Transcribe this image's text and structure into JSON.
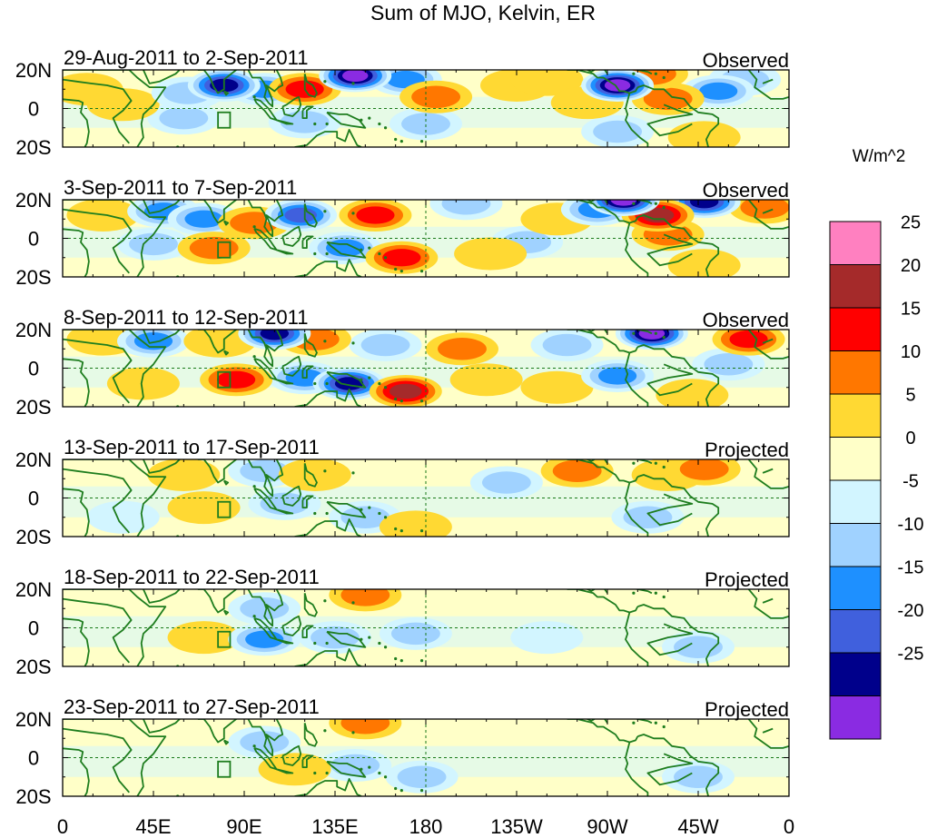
{
  "chart_data": {
    "type": "heatmap",
    "title": "Sum of MJO, Kelvin, ER",
    "units": "W/m^2",
    "x_tick_labels": [
      "0",
      "45E",
      "90E",
      "135E",
      "180",
      "135W",
      "90W",
      "45W",
      "0"
    ],
    "x_tick_degrees_east": [
      0,
      45,
      90,
      135,
      180,
      225,
      270,
      315,
      360
    ],
    "y_tick_labels": [
      "20N",
      "0",
      "20S"
    ],
    "y_tick_degrees": [
      20,
      0,
      -20
    ],
    "ylim": [
      -20,
      20
    ],
    "xlim": [
      0,
      360
    ],
    "colorbar": {
      "labels": [
        "25",
        "20",
        "15",
        "10",
        "5",
        "0",
        "-5",
        "-10",
        "-15",
        "-20",
        "-25"
      ],
      "levels": [
        25,
        20,
        15,
        10,
        5,
        0,
        -5,
        -10,
        -15,
        -20,
        -25
      ],
      "colors_top_to_bottom": [
        "#ff80c0",
        "#a52a2a",
        "#ff0000",
        "#ff7700",
        "#ffd933",
        "#ffffc8",
        "#d2f5ff",
        "#a0d2ff",
        "#1e90ff",
        "#4060dd",
        "#00008b",
        "#8a2be2"
      ]
    },
    "panels": [
      {
        "period": "29-Aug-2011 to 2-Sep-2011",
        "kind": "Observed",
        "blobs": [
          {
            "lon": 80,
            "lat": 12,
            "value": -22
          },
          {
            "lon": 100,
            "lat": 10,
            "value": -12
          },
          {
            "lon": 62,
            "lat": 8,
            "value": -8
          },
          {
            "lon": 120,
            "lat": 10,
            "value": 18
          },
          {
            "lon": 145,
            "lat": 17,
            "value": -26
          },
          {
            "lon": 170,
            "lat": 15,
            "value": -12
          },
          {
            "lon": 185,
            "lat": 6,
            "value": 12
          },
          {
            "lon": 225,
            "lat": 12,
            "value": 8
          },
          {
            "lon": 240,
            "lat": 15,
            "value": 8
          },
          {
            "lon": 260,
            "lat": 3,
            "value": 10
          },
          {
            "lon": 275,
            "lat": 12,
            "value": -25
          },
          {
            "lon": 292,
            "lat": 18,
            "value": 14
          },
          {
            "lon": 300,
            "lat": 5,
            "value": 12
          },
          {
            "lon": 325,
            "lat": 9,
            "value": -10
          },
          {
            "lon": 338,
            "lat": 15,
            "value": -8
          },
          {
            "lon": 30,
            "lat": 2,
            "value": 7
          },
          {
            "lon": 12,
            "lat": 10,
            "value": 6
          },
          {
            "lon": 120,
            "lat": -7,
            "value": -6
          },
          {
            "lon": 180,
            "lat": -8,
            "value": -5
          },
          {
            "lon": 275,
            "lat": -12,
            "value": -8
          },
          {
            "lon": 318,
            "lat": -15,
            "value": 10
          },
          {
            "lon": 60,
            "lat": -5,
            "value": -6
          },
          {
            "lon": 215,
            "lat": 2,
            "value": 4
          }
        ]
      },
      {
        "period": "3-Sep-2011 to 7-Sep-2011",
        "kind": "Observed",
        "blobs": [
          {
            "lon": 20,
            "lat": 12,
            "value": 8
          },
          {
            "lon": 50,
            "lat": 14,
            "value": -10
          },
          {
            "lon": 70,
            "lat": 10,
            "value": -12
          },
          {
            "lon": 95,
            "lat": 8,
            "value": 12
          },
          {
            "lon": 75,
            "lat": -5,
            "value": 12
          },
          {
            "lon": 118,
            "lat": 12,
            "value": -16
          },
          {
            "lon": 155,
            "lat": 12,
            "value": 16
          },
          {
            "lon": 200,
            "lat": 18,
            "value": -6
          },
          {
            "lon": 245,
            "lat": 10,
            "value": 10
          },
          {
            "lon": 265,
            "lat": 15,
            "value": -14
          },
          {
            "lon": 278,
            "lat": 20,
            "value": -26
          },
          {
            "lon": 295,
            "lat": 12,
            "value": 25
          },
          {
            "lon": 300,
            "lat": 2,
            "value": 15
          },
          {
            "lon": 318,
            "lat": 19,
            "value": -20
          },
          {
            "lon": 348,
            "lat": 16,
            "value": 12
          },
          {
            "lon": 140,
            "lat": -5,
            "value": -12
          },
          {
            "lon": 168,
            "lat": -10,
            "value": 16
          },
          {
            "lon": 212,
            "lat": -8,
            "value": 10
          },
          {
            "lon": 45,
            "lat": -3,
            "value": -8
          },
          {
            "lon": 318,
            "lat": -14,
            "value": 10
          },
          {
            "lon": 230,
            "lat": -2,
            "value": -6
          }
        ]
      },
      {
        "period": "8-Sep-2011 to 12-Sep-2011",
        "kind": "Observed",
        "blobs": [
          {
            "lon": 20,
            "lat": 15,
            "value": 6
          },
          {
            "lon": 45,
            "lat": 14,
            "value": -10
          },
          {
            "lon": 78,
            "lat": 14,
            "value": 10
          },
          {
            "lon": 105,
            "lat": 18,
            "value": -22
          },
          {
            "lon": 125,
            "lat": 15,
            "value": 15
          },
          {
            "lon": 160,
            "lat": 12,
            "value": -8
          },
          {
            "lon": 198,
            "lat": 10,
            "value": 12
          },
          {
            "lon": 250,
            "lat": 12,
            "value": -6
          },
          {
            "lon": 292,
            "lat": 18,
            "value": -25
          },
          {
            "lon": 340,
            "lat": 15,
            "value": 20
          },
          {
            "lon": 86,
            "lat": -6,
            "value": 20
          },
          {
            "lon": 120,
            "lat": -5,
            "value": -10
          },
          {
            "lon": 142,
            "lat": -8,
            "value": -20
          },
          {
            "lon": 170,
            "lat": -12,
            "value": 22
          },
          {
            "lon": 210,
            "lat": -6,
            "value": 6
          },
          {
            "lon": 245,
            "lat": -10,
            "value": 8
          },
          {
            "lon": 275,
            "lat": -4,
            "value": -14
          },
          {
            "lon": 312,
            "lat": -14,
            "value": 8
          },
          {
            "lon": 330,
            "lat": 2,
            "value": -8
          },
          {
            "lon": 40,
            "lat": -8,
            "value": 6
          }
        ]
      },
      {
        "period": "13-Sep-2011 to 17-Sep-2011",
        "kind": "Projected",
        "blobs": [
          {
            "lon": 60,
            "lat": 12,
            "value": 6
          },
          {
            "lon": 100,
            "lat": 14,
            "value": -7
          },
          {
            "lon": 125,
            "lat": 12,
            "value": 10
          },
          {
            "lon": 150,
            "lat": 8,
            "value": 5
          },
          {
            "lon": 220,
            "lat": 8,
            "value": -5
          },
          {
            "lon": 255,
            "lat": 14,
            "value": 14
          },
          {
            "lon": 300,
            "lat": 12,
            "value": 6
          },
          {
            "lon": 318,
            "lat": 15,
            "value": 12
          },
          {
            "lon": 70,
            "lat": -5,
            "value": 6
          },
          {
            "lon": 110,
            "lat": -3,
            "value": -7
          },
          {
            "lon": 150,
            "lat": -10,
            "value": -6
          },
          {
            "lon": 175,
            "lat": -15,
            "value": 6
          },
          {
            "lon": 290,
            "lat": -10,
            "value": -5
          },
          {
            "lon": 30,
            "lat": -10,
            "value": -4
          },
          {
            "lon": 30,
            "lat": 15,
            "value": 4
          }
        ]
      },
      {
        "period": "18-Sep-2011 to 22-Sep-2011",
        "kind": "Projected",
        "blobs": [
          {
            "lon": 60,
            "lat": 10,
            "value": 5
          },
          {
            "lon": 100,
            "lat": 10,
            "value": -6
          },
          {
            "lon": 150,
            "lat": 17,
            "value": 14
          },
          {
            "lon": 200,
            "lat": 12,
            "value": 5
          },
          {
            "lon": 70,
            "lat": -5,
            "value": 6
          },
          {
            "lon": 100,
            "lat": -6,
            "value": -10
          },
          {
            "lon": 135,
            "lat": -5,
            "value": -6
          },
          {
            "lon": 175,
            "lat": -3,
            "value": -6
          },
          {
            "lon": 295,
            "lat": 16,
            "value": 5
          },
          {
            "lon": 315,
            "lat": -10,
            "value": -8
          },
          {
            "lon": 30,
            "lat": 5,
            "value": 4
          },
          {
            "lon": 240,
            "lat": -5,
            "value": -3
          }
        ]
      },
      {
        "period": "23-Sep-2011 to 27-Sep-2011",
        "kind": "Projected",
        "blobs": [
          {
            "lon": 50,
            "lat": 14,
            "value": 5
          },
          {
            "lon": 100,
            "lat": 8,
            "value": -5
          },
          {
            "lon": 150,
            "lat": 18,
            "value": 14
          },
          {
            "lon": 215,
            "lat": 8,
            "value": 5
          },
          {
            "lon": 275,
            "lat": 15,
            "value": 5
          },
          {
            "lon": 75,
            "lat": -4,
            "value": 5
          },
          {
            "lon": 115,
            "lat": -6,
            "value": 8
          },
          {
            "lon": 145,
            "lat": -4,
            "value": -6
          },
          {
            "lon": 178,
            "lat": -10,
            "value": -7
          },
          {
            "lon": 315,
            "lat": -10,
            "value": -8
          },
          {
            "lon": 30,
            "lat": 5,
            "value": 4
          },
          {
            "lon": 20,
            "lat": -12,
            "value": 4
          }
        ]
      }
    ]
  }
}
